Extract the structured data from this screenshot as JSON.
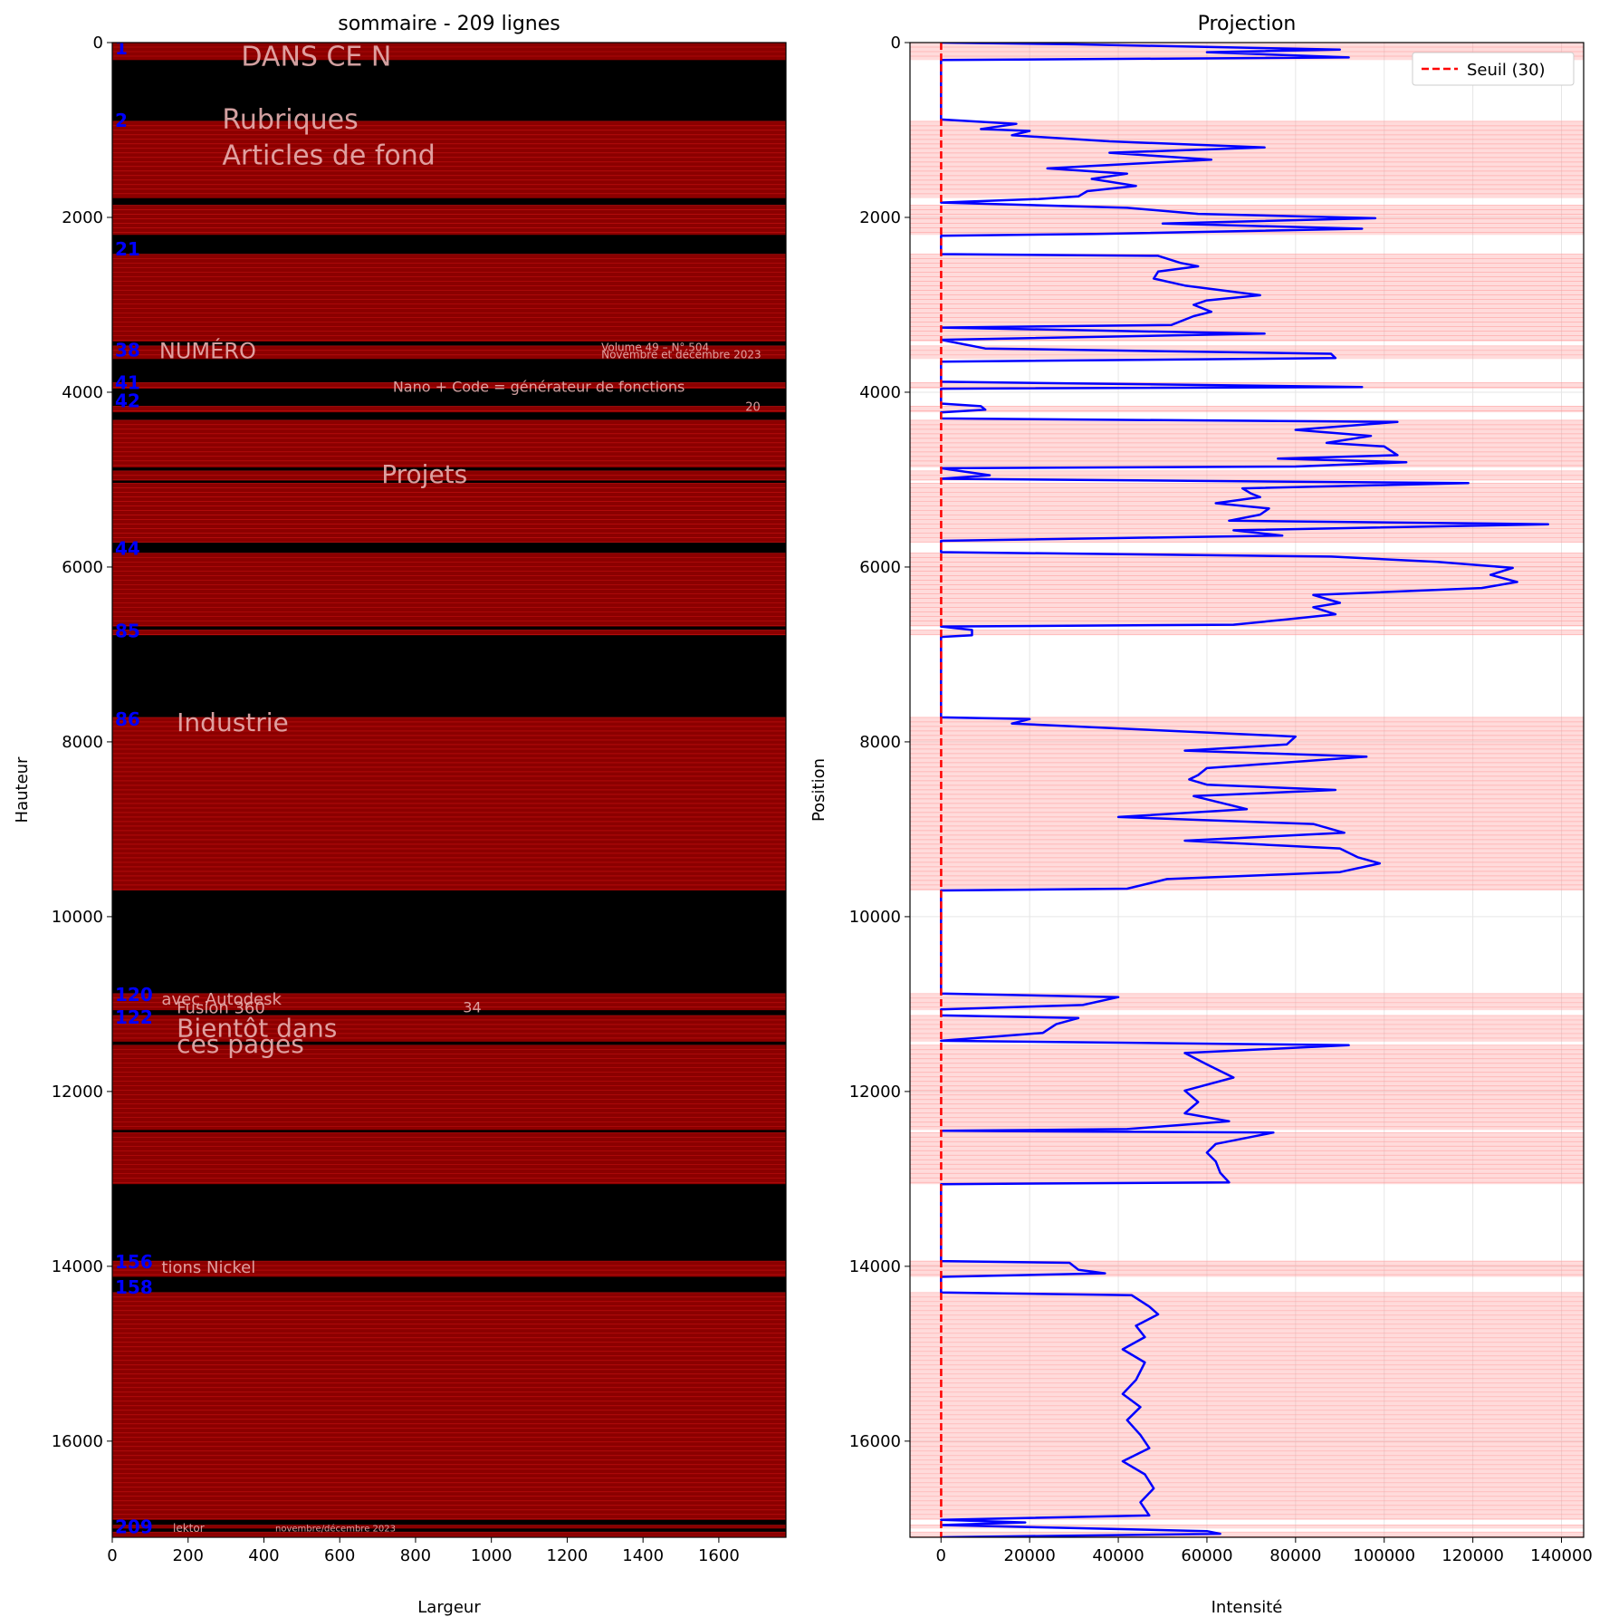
{
  "chart_data": [
    {
      "type": "image",
      "title": "sommaire - 209 lignes",
      "xlabel": "Largeur",
      "ylabel": "Hauteur",
      "xlim": [
        0,
        1777
      ],
      "ylim": [
        17100,
        0
      ],
      "xticks": [
        0,
        200,
        400,
        600,
        800,
        1000,
        1200,
        1400,
        1600
      ],
      "yticks": [
        0,
        2000,
        4000,
        6000,
        8000,
        10000,
        12000,
        14000,
        16000
      ],
      "line_count": 209,
      "colors": {
        "background": "#000000",
        "band": "#8b0000",
        "band_line": "#ff2020",
        "label": "#0000ff",
        "page_text": "#e8b0b0"
      },
      "visible_page_text": [
        "DANS CE N",
        "Rubriques",
        "Articles de fond",
        "NUMÉRO",
        "Volume 49 – N° 504",
        "Novembre et décembre 2023",
        "Nano + Code = générateur de fonctions",
        "20",
        "Projets",
        "Industrie",
        "avec Autodesk",
        "Fusion 360",
        "34",
        "Bientôt dans",
        "ces pages",
        "tions Nickel",
        "lektor",
        "novembre/décembre 2023"
      ],
      "line_labels": [
        {
          "label": "1",
          "y": 50
        },
        {
          "label": "2",
          "y": 880
        },
        {
          "label": "21",
          "y": 2350
        },
        {
          "label": "38",
          "y": 3510
        },
        {
          "label": "41",
          "y": 3880
        },
        {
          "label": "42",
          "y": 4090
        },
        {
          "label": "44",
          "y": 5780
        },
        {
          "label": "85",
          "y": 6720
        },
        {
          "label": "86",
          "y": 7730
        },
        {
          "label": "120",
          "y": 10880
        },
        {
          "label": "122",
          "y": 11140
        },
        {
          "label": "156",
          "y": 13940
        },
        {
          "label": "158",
          "y": 14230
        },
        {
          "label": "209",
          "y": 16970
        }
      ],
      "text_bands": [
        [
          0,
          200
        ],
        [
          900,
          1780
        ],
        [
          1860,
          2200
        ],
        [
          2420,
          3420
        ],
        [
          3470,
          3620
        ],
        [
          3890,
          3960
        ],
        [
          4160,
          4230
        ],
        [
          4320,
          4860
        ],
        [
          4900,
          5010
        ],
        [
          5040,
          5720
        ],
        [
          5840,
          6680
        ],
        [
          6720,
          6780
        ],
        [
          7720,
          9700
        ],
        [
          10880,
          11070
        ],
        [
          11130,
          11430
        ],
        [
          11470,
          12440
        ],
        [
          12470,
          13060
        ],
        [
          13940,
          14120
        ],
        [
          14300,
          16900
        ],
        [
          16960,
          17000
        ],
        [
          17040,
          17100
        ]
      ]
    },
    {
      "type": "line",
      "title": "Projection",
      "xlabel": "Intensité",
      "ylabel": "Position",
      "xlim": [
        -7000,
        145000
      ],
      "ylim": [
        17100,
        0
      ],
      "xticks": [
        0,
        20000,
        40000,
        60000,
        80000,
        100000,
        120000,
        140000
      ],
      "yticks": [
        0,
        2000,
        4000,
        6000,
        8000,
        10000,
        12000,
        14000,
        16000
      ],
      "legend": {
        "position": "top-right",
        "label": "Seuil (30)"
      },
      "threshold": 30,
      "colors": {
        "projection": "#0000ff",
        "threshold": "#ff0000",
        "band": "#ff9999"
      },
      "series": [
        {
          "name": "projection",
          "points": [
            [
              0,
              0
            ],
            [
              30000,
              20
            ],
            [
              90000,
              80
            ],
            [
              60000,
              110
            ],
            [
              92000,
              170
            ],
            [
              0,
              200
            ],
            [
              0,
              880
            ],
            [
              17000,
              930
            ],
            [
              9000,
              990
            ],
            [
              20000,
              1010
            ],
            [
              16000,
              1060
            ],
            [
              38000,
              1130
            ],
            [
              73000,
              1200
            ],
            [
              38000,
              1260
            ],
            [
              61000,
              1340
            ],
            [
              38000,
              1400
            ],
            [
              24000,
              1440
            ],
            [
              42000,
              1500
            ],
            [
              34000,
              1560
            ],
            [
              44000,
              1640
            ],
            [
              33000,
              1700
            ],
            [
              31000,
              1760
            ],
            [
              22000,
              1790
            ],
            [
              0,
              1830
            ],
            [
              42000,
              1890
            ],
            [
              58000,
              1960
            ],
            [
              98000,
              2010
            ],
            [
              50000,
              2070
            ],
            [
              95000,
              2130
            ],
            [
              35000,
              2190
            ],
            [
              0,
              2210
            ],
            [
              0,
              2420
            ],
            [
              49000,
              2440
            ],
            [
              54000,
              2520
            ],
            [
              58000,
              2560
            ],
            [
              49000,
              2620
            ],
            [
              48000,
              2700
            ],
            [
              55000,
              2780
            ],
            [
              72000,
              2890
            ],
            [
              60000,
              2950
            ],
            [
              57000,
              3000
            ],
            [
              61000,
              3080
            ],
            [
              57000,
              3130
            ],
            [
              52000,
              3230
            ],
            [
              0,
              3260
            ],
            [
              73000,
              3330
            ],
            [
              0,
              3400
            ],
            [
              10000,
              3500
            ],
            [
              88000,
              3560
            ],
            [
              89000,
              3610
            ],
            [
              0,
              3650
            ],
            [
              0,
              3880
            ],
            [
              95000,
              3940
            ],
            [
              0,
              3960
            ],
            [
              0,
              4130
            ],
            [
              9000,
              4160
            ],
            [
              10000,
              4200
            ],
            [
              0,
              4230
            ],
            [
              0,
              4300
            ],
            [
              103000,
              4340
            ],
            [
              80000,
              4430
            ],
            [
              97000,
              4500
            ],
            [
              87000,
              4580
            ],
            [
              100000,
              4620
            ],
            [
              103000,
              4720
            ],
            [
              76000,
              4760
            ],
            [
              105000,
              4800
            ],
            [
              80000,
              4850
            ],
            [
              0,
              4870
            ],
            [
              11000,
              4950
            ],
            [
              0,
              4990
            ],
            [
              119000,
              5040
            ],
            [
              68000,
              5100
            ],
            [
              70000,
              5160
            ],
            [
              72000,
              5200
            ],
            [
              62000,
              5270
            ],
            [
              74000,
              5330
            ],
            [
              72000,
              5400
            ],
            [
              65000,
              5470
            ],
            [
              137000,
              5510
            ],
            [
              66000,
              5580
            ],
            [
              77000,
              5640
            ],
            [
              0,
              5700
            ],
            [
              0,
              5830
            ],
            [
              88000,
              5880
            ],
            [
              112000,
              5940
            ],
            [
              129000,
              6010
            ],
            [
              124000,
              6090
            ],
            [
              130000,
              6170
            ],
            [
              122000,
              6240
            ],
            [
              84000,
              6320
            ],
            [
              90000,
              6410
            ],
            [
              84000,
              6460
            ],
            [
              89000,
              6540
            ],
            [
              78000,
              6600
            ],
            [
              66000,
              6660
            ],
            [
              0,
              6680
            ],
            [
              7000,
              6720
            ],
            [
              7000,
              6780
            ],
            [
              0,
              6800
            ],
            [
              0,
              7720
            ],
            [
              20000,
              7740
            ],
            [
              16000,
              7790
            ],
            [
              80000,
              7940
            ],
            [
              78000,
              8030
            ],
            [
              55000,
              8100
            ],
            [
              96000,
              8170
            ],
            [
              60000,
              8300
            ],
            [
              58000,
              8380
            ],
            [
              56000,
              8430
            ],
            [
              60000,
              8490
            ],
            [
              89000,
              8550
            ],
            [
              57000,
              8620
            ],
            [
              69000,
              8770
            ],
            [
              40000,
              8860
            ],
            [
              84000,
              8940
            ],
            [
              91000,
              9040
            ],
            [
              55000,
              9130
            ],
            [
              90000,
              9220
            ],
            [
              94000,
              9320
            ],
            [
              99000,
              9390
            ],
            [
              90000,
              9490
            ],
            [
              51000,
              9570
            ],
            [
              42000,
              9680
            ],
            [
              0,
              9700
            ],
            [
              0,
              10880
            ],
            [
              40000,
              10920
            ],
            [
              32000,
              11010
            ],
            [
              0,
              11060
            ],
            [
              0,
              11130
            ],
            [
              31000,
              11160
            ],
            [
              26000,
              11230
            ],
            [
              23000,
              11330
            ],
            [
              0,
              11420
            ],
            [
              92000,
              11470
            ],
            [
              55000,
              11560
            ],
            [
              60000,
              11690
            ],
            [
              66000,
              11840
            ],
            [
              55000,
              11990
            ],
            [
              58000,
              12120
            ],
            [
              55000,
              12250
            ],
            [
              65000,
              12340
            ],
            [
              42000,
              12430
            ],
            [
              0,
              12450
            ],
            [
              75000,
              12470
            ],
            [
              62000,
              12600
            ],
            [
              60000,
              12700
            ],
            [
              62000,
              12800
            ],
            [
              63000,
              12930
            ],
            [
              65000,
              13040
            ],
            [
              0,
              13060
            ],
            [
              0,
              13940
            ],
            [
              29000,
              13960
            ],
            [
              31000,
              14040
            ],
            [
              37000,
              14080
            ],
            [
              0,
              14120
            ],
            [
              0,
              14300
            ],
            [
              43000,
              14330
            ],
            [
              47000,
              14460
            ],
            [
              49000,
              14550
            ],
            [
              44000,
              14680
            ],
            [
              46000,
              14810
            ],
            [
              41000,
              14950
            ],
            [
              46000,
              15100
            ],
            [
              44000,
              15300
            ],
            [
              41000,
              15460
            ],
            [
              45000,
              15610
            ],
            [
              42000,
              15760
            ],
            [
              45000,
              15930
            ],
            [
              47000,
              16080
            ],
            [
              41000,
              16230
            ],
            [
              46000,
              16380
            ],
            [
              48000,
              16540
            ],
            [
              45000,
              16700
            ],
            [
              47000,
              16850
            ],
            [
              0,
              16900
            ],
            [
              19000,
              16930
            ],
            [
              0,
              16960
            ],
            [
              60000,
              17030
            ],
            [
              63000,
              17060
            ],
            [
              0,
              17100
            ]
          ]
        }
      ]
    }
  ]
}
